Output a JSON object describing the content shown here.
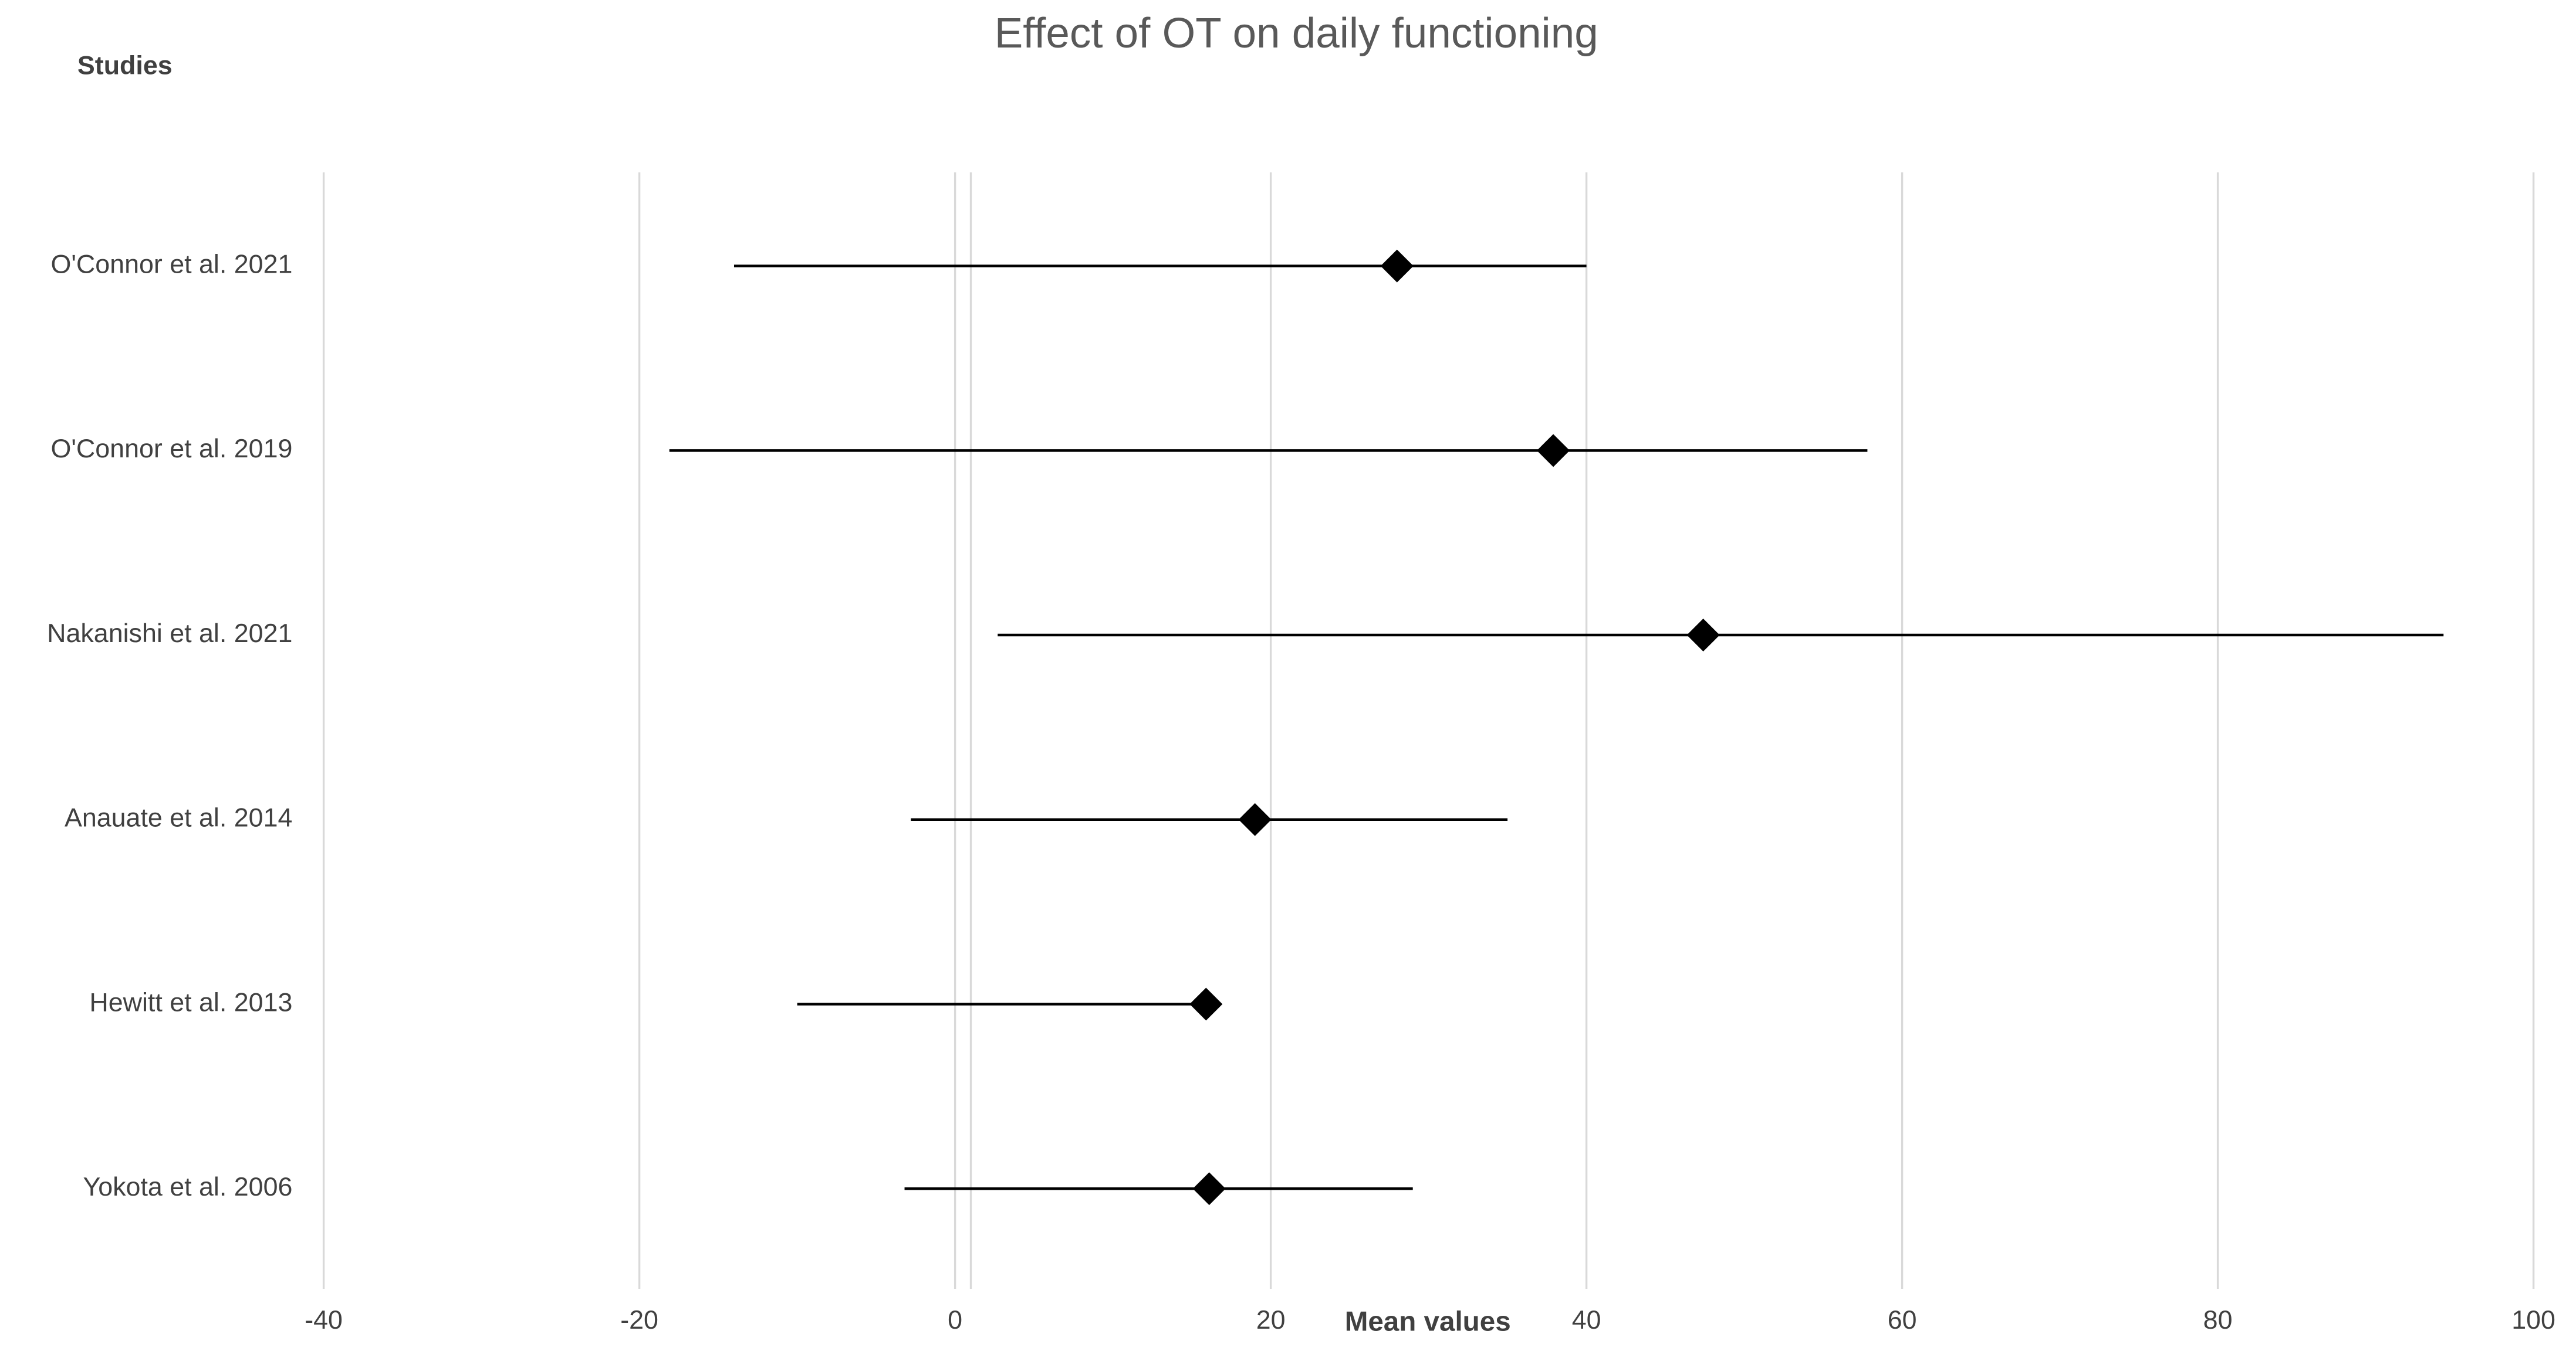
{
  "chart_data": {
    "type": "forest",
    "title": "Effect of OT on daily functioning",
    "y_label": "Studies",
    "x_label": "Mean values",
    "categories": [
      "O'Connor et al. 2021",
      "O'Connor et al. 2019",
      "Nakanishi et al. 2021",
      "Anauate et al. 2014",
      "Hewitt et al. 2013",
      "Yokota et al. 2006"
    ],
    "series": [
      {
        "color": "#000000",
        "values": [
          28.0,
          37.9,
          47.4,
          19.0,
          15.9,
          16.1
        ],
        "lower": [
          -14.0,
          -18.1,
          2.7,
          -2.8,
          -10.0,
          -3.2
        ],
        "upper": [
          40.0,
          57.8,
          94.3,
          35.0,
          15.9,
          29.0
        ]
      }
    ],
    "xlim": [
      -40,
      100
    ],
    "xticks": [
      -40,
      -20,
      0,
      20,
      40,
      60,
      80,
      100
    ],
    "reference_line": 1,
    "grid": true
  }
}
